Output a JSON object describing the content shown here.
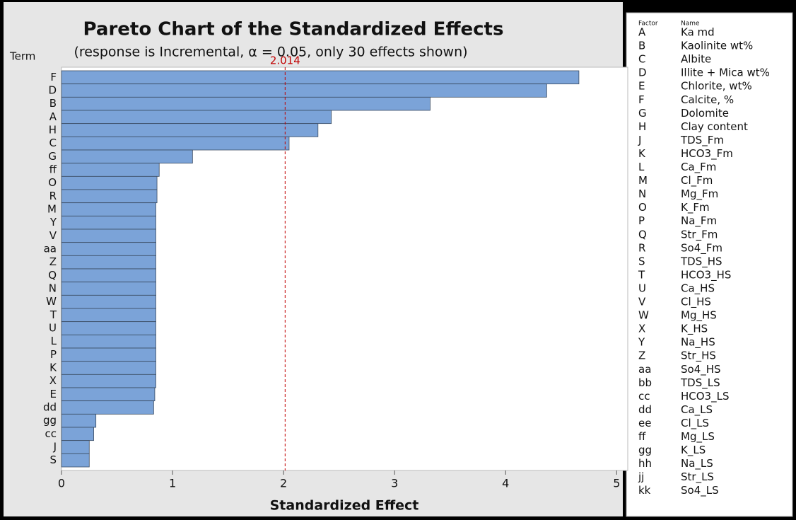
{
  "chart_data": {
    "type": "hbar",
    "title": "Pareto Chart of the Standardized Effects",
    "subtitle": "(response is Incremental, α = 0.05, only 30 effects shown)",
    "y_axis_label": "Term",
    "x_axis_label": "Standardized Effect",
    "categories": [
      "F",
      "D",
      "B",
      "A",
      "H",
      "C",
      "G",
      "ff",
      "O",
      "R",
      "M",
      "Y",
      "V",
      "aa",
      "Z",
      "Q",
      "N",
      "W",
      "T",
      "U",
      "L",
      "P",
      "K",
      "X",
      "E",
      "dd",
      "gg",
      "cc",
      "J",
      "S"
    ],
    "values": [
      4.66,
      4.37,
      3.32,
      2.43,
      2.31,
      2.05,
      1.18,
      0.88,
      0.86,
      0.86,
      0.85,
      0.85,
      0.85,
      0.85,
      0.85,
      0.85,
      0.85,
      0.85,
      0.85,
      0.85,
      0.85,
      0.85,
      0.85,
      0.85,
      0.84,
      0.83,
      0.31,
      0.29,
      0.25,
      0.25
    ],
    "color": "#7ba3d8",
    "xlim": [
      0,
      5.1
    ],
    "xticks": [
      0,
      1,
      2,
      3,
      4,
      5
    ],
    "reference_line": {
      "value": 2.014,
      "label": "2.014",
      "color": "#c00000"
    }
  },
  "factor_table": {
    "headers": [
      "Factor",
      "Name"
    ],
    "rows": [
      [
        "A",
        "Ka md"
      ],
      [
        "B",
        "Kaolinite wt%"
      ],
      [
        "C",
        "Albite"
      ],
      [
        "D",
        "Illite + Mica wt%"
      ],
      [
        "E",
        "Chlorite, wt%"
      ],
      [
        "F",
        "Calcite, %"
      ],
      [
        "G",
        "Dolomite"
      ],
      [
        "H",
        "Clay content"
      ],
      [
        "J",
        "TDS_Fm"
      ],
      [
        "K",
        "HCO3_Fm"
      ],
      [
        "L",
        "Ca_Fm"
      ],
      [
        "M",
        "Cl_Fm"
      ],
      [
        "N",
        "Mg_Fm"
      ],
      [
        "O",
        "K_Fm"
      ],
      [
        "P",
        "Na_Fm"
      ],
      [
        "Q",
        "Str_Fm"
      ],
      [
        "R",
        "So4_Fm"
      ],
      [
        "S",
        "TDS_HS"
      ],
      [
        "T",
        "HCO3_HS"
      ],
      [
        "U",
        "Ca_HS"
      ],
      [
        "V",
        "Cl_HS"
      ],
      [
        "W",
        "Mg_HS"
      ],
      [
        "X",
        "K_HS"
      ],
      [
        "Y",
        "Na_HS"
      ],
      [
        "Z",
        "Str_HS"
      ],
      [
        "aa",
        "So4_HS"
      ],
      [
        "bb",
        "TDS_LS"
      ],
      [
        "cc",
        "HCO3_LS"
      ],
      [
        "dd",
        "Ca_LS"
      ],
      [
        "ee",
        "Cl_LS"
      ],
      [
        "ff",
        "Mg_LS"
      ],
      [
        "gg",
        "K_LS"
      ],
      [
        "hh",
        "Na_LS"
      ],
      [
        "jj",
        "Str_LS"
      ],
      [
        "kk",
        "So4_LS"
      ]
    ]
  }
}
